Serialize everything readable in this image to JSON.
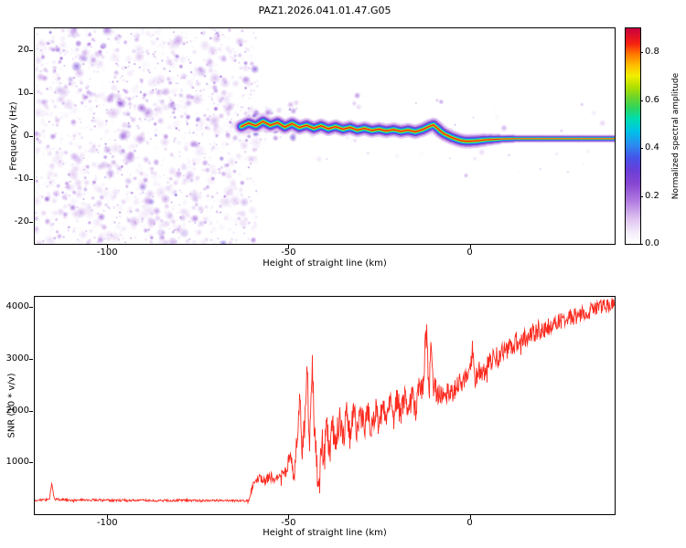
{
  "figure": {
    "title": "PAZ1.2026.041.01.47.G05"
  },
  "chart_data": [
    {
      "type": "heatmap",
      "panel": "spectrogram",
      "title": "PAZ1.2026.041.01.47.G05",
      "xlabel": "Height of straight line (km)",
      "ylabel": "Frequency (Hz)",
      "xlim": [
        -120,
        40
      ],
      "ylim": [
        -25,
        25
      ],
      "xticks": [
        -100,
        -50,
        0
      ],
      "yticks": [
        -20,
        -10,
        0,
        10,
        20
      ],
      "grid": false,
      "noise_region_x": [
        -120,
        -60
      ],
      "signal_track": {
        "note": "narrow spectral ridge near 0 Hz emerging at -60 km, slowly descending, flat to right edge",
        "points": [
          [
            -63,
            2.2
          ],
          [
            -61,
            3.0
          ],
          [
            -59,
            2.4
          ],
          [
            -57,
            3.4
          ],
          [
            -55,
            2.5
          ],
          [
            -53,
            3.1
          ],
          [
            -51,
            2.1
          ],
          [
            -49,
            2.9
          ],
          [
            -47,
            2.0
          ],
          [
            -45,
            2.5
          ],
          [
            -43,
            1.8
          ],
          [
            -41,
            2.4
          ],
          [
            -39,
            1.7
          ],
          [
            -37,
            2.2
          ],
          [
            -35,
            1.6
          ],
          [
            -33,
            2.0
          ],
          [
            -31,
            1.4
          ],
          [
            -29,
            1.8
          ],
          [
            -27,
            1.3
          ],
          [
            -25,
            1.6
          ],
          [
            -23,
            1.2
          ],
          [
            -21,
            1.5
          ],
          [
            -19,
            1.1
          ],
          [
            -17,
            1.4
          ],
          [
            -15,
            1.0
          ],
          [
            -13,
            1.5
          ],
          [
            -11,
            2.3
          ],
          [
            -10,
            2.6
          ],
          [
            -9,
            1.9
          ],
          [
            -8,
            1.1
          ],
          [
            -7,
            0.5
          ],
          [
            -6,
            0.1
          ],
          [
            -5,
            -0.3
          ],
          [
            -4,
            -0.6
          ],
          [
            -3,
            -0.9
          ],
          [
            -2,
            -1.1
          ],
          [
            -1,
            -1.2
          ],
          [
            0,
            -1.2
          ],
          [
            2,
            -1.1
          ],
          [
            4,
            -0.9
          ],
          [
            6,
            -0.8
          ],
          [
            8,
            -0.7
          ],
          [
            12,
            -0.6
          ],
          [
            20,
            -0.6
          ],
          [
            30,
            -0.6
          ],
          [
            40,
            -0.6
          ]
        ]
      },
      "colormap_stops": [
        [
          0,
          "#ffffff"
        ],
        [
          0.05,
          "#f5eefb"
        ],
        [
          0.12,
          "#dcc0ef"
        ],
        [
          0.2,
          "#b07ae0"
        ],
        [
          0.28,
          "#8746d2"
        ],
        [
          0.34,
          "#6a3fd8"
        ],
        [
          0.4,
          "#4553e8"
        ],
        [
          0.46,
          "#2a8cf0"
        ],
        [
          0.52,
          "#00c0e8"
        ],
        [
          0.58,
          "#00ddb0"
        ],
        [
          0.63,
          "#2ed45e"
        ],
        [
          0.68,
          "#6ed42a"
        ],
        [
          0.73,
          "#b4e000"
        ],
        [
          0.78,
          "#f2ee00"
        ],
        [
          0.83,
          "#ffbb00"
        ],
        [
          0.88,
          "#ff7700"
        ],
        [
          0.93,
          "#f52010"
        ],
        [
          1,
          "#c80040"
        ]
      ],
      "colorbar": {
        "label": "Normalized spectral amplitude",
        "range": [
          0,
          0.9
        ],
        "ticks": [
          0.0,
          0.2,
          0.4,
          0.6,
          0.8
        ]
      }
    },
    {
      "type": "line",
      "panel": "snr",
      "xlabel": "Height of straight line (km)",
      "ylabel": "SNR (10 * v/v)",
      "xlim": [
        -120,
        40
      ],
      "ylim": [
        0,
        4200
      ],
      "xticks": [
        -100,
        -50,
        0
      ],
      "yticks": [
        1000,
        2000,
        3000,
        4000
      ],
      "grid": false,
      "series": [
        {
          "name": "SNR",
          "color": "#fb2b20",
          "trend": [
            [
              -120,
              270
            ],
            [
              -116,
              280
            ],
            [
              -115.3,
              580
            ],
            [
              -114.6,
              290
            ],
            [
              -110,
              270
            ],
            [
              -104,
              275
            ],
            [
              -98,
              265
            ],
            [
              -92,
              272
            ],
            [
              -86,
              262
            ],
            [
              -80,
              270
            ],
            [
              -74,
              263
            ],
            [
              -68,
              268
            ],
            [
              -63,
              258
            ],
            [
              -61,
              255
            ],
            [
              -59.5,
              640
            ],
            [
              -58,
              690
            ],
            [
              -56.5,
              640
            ],
            [
              -55,
              730
            ],
            [
              -53.5,
              660
            ],
            [
              -52,
              760
            ],
            [
              -50.5,
              800
            ],
            [
              -49.5,
              1250
            ],
            [
              -48.5,
              750
            ],
            [
              -47.5,
              1500
            ],
            [
              -46.8,
              2400
            ],
            [
              -46.2,
              1100
            ],
            [
              -45.5,
              1800
            ],
            [
              -44.8,
              2780
            ],
            [
              -44.2,
              1250
            ],
            [
              -43.4,
              2850
            ],
            [
              -42.8,
              1500
            ],
            [
              -42.2,
              900
            ],
            [
              -41.5,
              480
            ],
            [
              -40.8,
              1500
            ],
            [
              -40.2,
              1000
            ],
            [
              -39.4,
              1700
            ],
            [
              -38.6,
              1150
            ],
            [
              -37.8,
              1750
            ],
            [
              -37,
              1300
            ],
            [
              -36,
              1850
            ],
            [
              -35,
              1450
            ],
            [
              -34,
              1900
            ],
            [
              -33,
              1500
            ],
            [
              -32,
              1950
            ],
            [
              -31,
              1550
            ],
            [
              -30,
              1980
            ],
            [
              -29,
              1600
            ],
            [
              -28,
              2000
            ],
            [
              -27,
              1650
            ],
            [
              -26,
              2050
            ],
            [
              -25,
              1750
            ],
            [
              -24,
              2100
            ],
            [
              -23,
              1800
            ],
            [
              -22,
              2150
            ],
            [
              -21,
              1850
            ],
            [
              -20,
              2200
            ],
            [
              -19,
              1900
            ],
            [
              -18,
              2250
            ],
            [
              -17,
              1950
            ],
            [
              -16,
              2300
            ],
            [
              -15,
              2050
            ],
            [
              -14,
              2350
            ],
            [
              -13,
              2450
            ],
            [
              -12.4,
              3050
            ],
            [
              -11.8,
              3520
            ],
            [
              -11.2,
              2350
            ],
            [
              -10.6,
              3380
            ],
            [
              -10,
              2450
            ],
            [
              -9,
              2300
            ],
            [
              -8,
              2380
            ],
            [
              -7,
              2320
            ],
            [
              -6,
              2400
            ],
            [
              -5,
              2350
            ],
            [
              -4,
              2450
            ],
            [
              -3,
              2500
            ],
            [
              -2,
              2550
            ],
            [
              -1,
              2600
            ],
            [
              0,
              2650
            ],
            [
              0.8,
              3300
            ],
            [
              1.4,
              2600
            ],
            [
              2,
              2720
            ],
            [
              3,
              2800
            ],
            [
              4,
              2760
            ],
            [
              5,
              2880
            ],
            [
              6,
              2980
            ],
            [
              7,
              3080
            ],
            [
              8,
              3000
            ],
            [
              9,
              3180
            ],
            [
              10,
              3120
            ],
            [
              11,
              3280
            ],
            [
              12,
              3220
            ],
            [
              13,
              3380
            ],
            [
              14,
              3300
            ],
            [
              15,
              3440
            ],
            [
              16,
              3380
            ],
            [
              17,
              3520
            ],
            [
              18,
              3480
            ],
            [
              19,
              3580
            ],
            [
              20,
              3540
            ],
            [
              22,
              3640
            ],
            [
              24,
              3700
            ],
            [
              26,
              3740
            ],
            [
              28,
              3800
            ],
            [
              30,
              3840
            ],
            [
              32,
              3900
            ],
            [
              34,
              3940
            ],
            [
              36,
              4000
            ],
            [
              38,
              4050
            ],
            [
              40,
              4120
            ]
          ],
          "noise_amplitude": [
            [
              -120,
              22
            ],
            [
              -62,
              22
            ],
            [
              -59,
              70
            ],
            [
              -54,
              90
            ],
            [
              -50,
              130
            ],
            [
              -47,
              280
            ],
            [
              -43,
              330
            ],
            [
              -38,
              320
            ],
            [
              -32,
              300
            ],
            [
              -26,
              280
            ],
            [
              -20,
              270
            ],
            [
              -14,
              300
            ],
            [
              -11,
              330
            ],
            [
              -8,
              230
            ],
            [
              -4,
              210
            ],
            [
              0,
              210
            ],
            [
              5,
              200
            ],
            [
              10,
              190
            ],
            [
              16,
              180
            ],
            [
              22,
              170
            ],
            [
              28,
              160
            ],
            [
              34,
              150
            ],
            [
              40,
              140
            ]
          ]
        }
      ]
    }
  ]
}
